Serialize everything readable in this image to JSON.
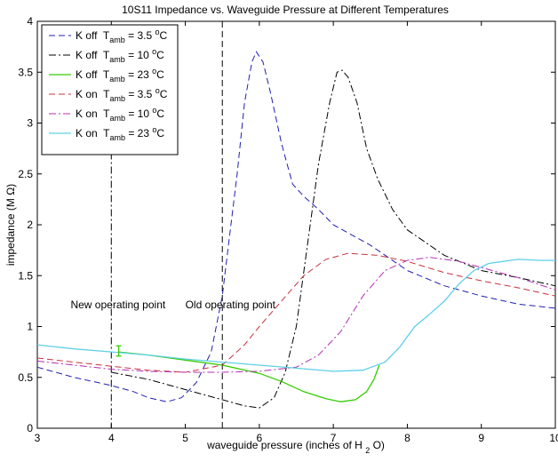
{
  "chart_data": {
    "type": "line",
    "title": "10S11 Impedance vs. Waveguide Pressure at Different Temperatures",
    "xlabel": {
      "main": "waveguide pressure (inches of H",
      "sub": "2",
      "tail": "O)"
    },
    "ylabel": "impedance (M Ω)",
    "xlim": [
      3,
      10
    ],
    "ylim": [
      0,
      4
    ],
    "xticks": [
      3,
      4,
      5,
      6,
      7,
      8,
      9,
      10
    ],
    "yticks": [
      0,
      0.5,
      1,
      1.5,
      2,
      2.5,
      3,
      3.5,
      4
    ],
    "grid": false,
    "legend_position": "top-left",
    "series": [
      {
        "legend": {
          "prefix": "K off  T",
          "sub": "amb",
          "eq": " = 3.5 ",
          "sup": "o",
          "unit": "C"
        },
        "color": "#1f1fb4",
        "dash": "7,4",
        "points": [
          [
            3.0,
            0.6
          ],
          [
            3.5,
            0.5
          ],
          [
            4.0,
            0.42
          ],
          [
            4.3,
            0.36
          ],
          [
            4.5,
            0.3
          ],
          [
            4.75,
            0.26
          ],
          [
            4.95,
            0.3
          ],
          [
            5.15,
            0.45
          ],
          [
            5.35,
            0.75
          ],
          [
            5.5,
            1.3
          ],
          [
            5.6,
            1.9
          ],
          [
            5.7,
            2.5
          ],
          [
            5.8,
            3.2
          ],
          [
            5.9,
            3.6
          ],
          [
            5.96,
            3.7
          ],
          [
            6.05,
            3.6
          ],
          [
            6.15,
            3.3
          ],
          [
            6.3,
            2.8
          ],
          [
            6.45,
            2.4
          ],
          [
            6.6,
            2.28
          ],
          [
            6.8,
            2.15
          ],
          [
            7.0,
            2.0
          ],
          [
            7.5,
            1.8
          ],
          [
            8.0,
            1.55
          ],
          [
            8.5,
            1.4
          ],
          [
            9.0,
            1.3
          ],
          [
            9.5,
            1.22
          ],
          [
            10.0,
            1.18
          ]
        ]
      },
      {
        "legend": {
          "prefix": "K off  T",
          "sub": "amb",
          "eq": " = 10 ",
          "sup": "o",
          "unit": "C"
        },
        "color": "#000000",
        "dash": "8,3,2,3",
        "points": [
          [
            4.0,
            0.55
          ],
          [
            4.5,
            0.48
          ],
          [
            5.0,
            0.38
          ],
          [
            5.5,
            0.28
          ],
          [
            5.8,
            0.22
          ],
          [
            6.0,
            0.2
          ],
          [
            6.2,
            0.3
          ],
          [
            6.35,
            0.55
          ],
          [
            6.5,
            1.0
          ],
          [
            6.65,
            1.8
          ],
          [
            6.8,
            2.6
          ],
          [
            6.95,
            3.2
          ],
          [
            7.05,
            3.5
          ],
          [
            7.12,
            3.52
          ],
          [
            7.2,
            3.45
          ],
          [
            7.32,
            3.2
          ],
          [
            7.45,
            2.75
          ],
          [
            7.6,
            2.45
          ],
          [
            7.8,
            2.15
          ],
          [
            8.0,
            1.95
          ],
          [
            8.5,
            1.7
          ],
          [
            9.0,
            1.55
          ],
          [
            9.5,
            1.48
          ],
          [
            10.0,
            1.4
          ]
        ]
      },
      {
        "legend": {
          "prefix": "K off  T",
          "sub": "amb",
          "eq": " = 23 ",
          "sup": "o",
          "unit": "C"
        },
        "color": "#33cc00",
        "dash": "",
        "points": [
          [
            4.1,
            0.75
          ],
          [
            4.5,
            0.72
          ],
          [
            5.0,
            0.67
          ],
          [
            5.5,
            0.62
          ],
          [
            6.0,
            0.54
          ],
          [
            6.3,
            0.46
          ],
          [
            6.6,
            0.36
          ],
          [
            6.9,
            0.29
          ],
          [
            7.1,
            0.26
          ],
          [
            7.3,
            0.28
          ],
          [
            7.45,
            0.36
          ],
          [
            7.55,
            0.48
          ],
          [
            7.62,
            0.62
          ]
        ]
      },
      {
        "legend": {
          "prefix": "K on  T",
          "sub": "amb",
          "eq": " = 3.5 ",
          "sup": "o",
          "unit": "C"
        },
        "color": "#c8323c",
        "dash": "7,4",
        "points": [
          [
            3.0,
            0.69
          ],
          [
            3.5,
            0.65
          ],
          [
            4.0,
            0.61
          ],
          [
            4.5,
            0.57
          ],
          [
            5.0,
            0.55
          ],
          [
            5.5,
            0.62
          ],
          [
            5.8,
            0.82
          ],
          [
            6.0,
            1.0
          ],
          [
            6.3,
            1.25
          ],
          [
            6.6,
            1.5
          ],
          [
            6.9,
            1.66
          ],
          [
            7.2,
            1.72
          ],
          [
            7.6,
            1.7
          ],
          [
            8.0,
            1.64
          ],
          [
            8.5,
            1.53
          ],
          [
            9.0,
            1.45
          ],
          [
            9.5,
            1.38
          ],
          [
            10.0,
            1.3
          ]
        ]
      },
      {
        "legend": {
          "prefix": "K on  T",
          "sub": "amb",
          "eq": " = 10 ",
          "sup": "o",
          "unit": "C"
        },
        "color": "#b42cb4",
        "dash": "8,3,2,3",
        "points": [
          [
            3.0,
            0.66
          ],
          [
            3.5,
            0.62
          ],
          [
            4.0,
            0.58
          ],
          [
            4.5,
            0.56
          ],
          [
            5.0,
            0.55
          ],
          [
            5.5,
            0.55
          ],
          [
            6.0,
            0.56
          ],
          [
            6.5,
            0.6
          ],
          [
            6.8,
            0.72
          ],
          [
            7.1,
            0.95
          ],
          [
            7.4,
            1.3
          ],
          [
            7.7,
            1.55
          ],
          [
            8.0,
            1.65
          ],
          [
            8.3,
            1.68
          ],
          [
            8.7,
            1.64
          ],
          [
            9.0,
            1.58
          ],
          [
            9.5,
            1.48
          ],
          [
            10.0,
            1.36
          ]
        ]
      },
      {
        "legend": {
          "prefix": "K on  T",
          "sub": "amb",
          "eq": " = 23 ",
          "sup": "o",
          "unit": "C"
        },
        "color": "#5fd0e8",
        "dash": "",
        "points": [
          [
            3.0,
            0.82
          ],
          [
            3.5,
            0.78
          ],
          [
            4.0,
            0.75
          ],
          [
            4.5,
            0.72
          ],
          [
            5.0,
            0.68
          ],
          [
            5.5,
            0.65
          ],
          [
            6.0,
            0.62
          ],
          [
            6.5,
            0.59
          ],
          [
            7.0,
            0.56
          ],
          [
            7.4,
            0.57
          ],
          [
            7.7,
            0.65
          ],
          [
            7.9,
            0.8
          ],
          [
            8.0,
            0.9
          ],
          [
            8.1,
            1.0
          ],
          [
            8.3,
            1.12
          ],
          [
            8.5,
            1.25
          ],
          [
            8.7,
            1.42
          ],
          [
            8.9,
            1.55
          ],
          [
            9.1,
            1.62
          ],
          [
            9.3,
            1.64
          ],
          [
            9.5,
            1.66
          ],
          [
            9.8,
            1.65
          ],
          [
            10.0,
            1.65
          ]
        ]
      }
    ],
    "annotations": [
      {
        "text": "New operating point",
        "x": 3.45,
        "y": 1.18
      },
      {
        "text": "Old operating point",
        "x": 5.0,
        "y": 1.18
      }
    ],
    "vlines": [
      {
        "x": 4.0,
        "y_top": 3.55,
        "dash": "8,3,2,3",
        "color": "#000000"
      },
      {
        "x": 5.5,
        "y_top": 4.0,
        "dash": "7,4",
        "color": "#000000"
      }
    ],
    "errorbar": {
      "x": 4.1,
      "y": 0.76,
      "half_range": 0.05,
      "color": "#33cc00"
    }
  }
}
